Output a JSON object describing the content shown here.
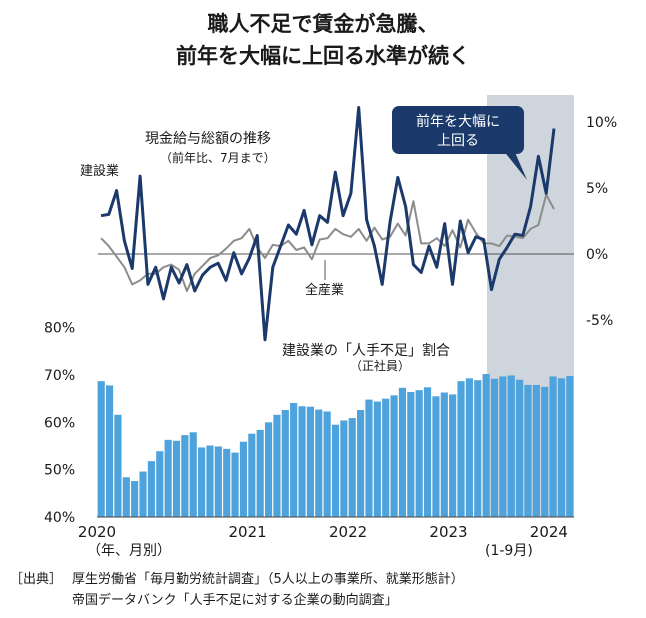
{
  "title_lines": [
    "職人不足で賃金が急騰、",
    "前年を大幅に上回る水準が続く"
  ],
  "chart_data": [
    {
      "type": "line",
      "title": "現金給与総額の推移",
      "subtitle": "（前年比、7月まで）",
      "y_unit": "%",
      "ylim": [
        -5,
        10
      ],
      "yticks": [
        "10%",
        "5%",
        "0%",
        "-5%"
      ],
      "series": [
        {
          "name": "建設業",
          "color": "#1b3a6b",
          "values": [
            2.9,
            3.0,
            4.8,
            1.0,
            -1.1,
            5.9,
            -2.3,
            -1.0,
            -3.4,
            -1.0,
            -2.2,
            -0.8,
            -2.8,
            -1.6,
            -1.0,
            -0.7,
            -2.0,
            0.1,
            -1.5,
            -0.3,
            1.4,
            -6.5,
            -1.0,
            0.6,
            2.2,
            1.5,
            3.3,
            0.7,
            2.9,
            2.4,
            6.2,
            2.9,
            4.6,
            11.1,
            2.6,
            0.6,
            -2.3,
            2.4,
            5.8,
            3.6,
            -0.8,
            -1.4,
            0.6,
            -1.0,
            2.3,
            -2.3,
            2.5,
            0.1,
            1.3,
            1.1,
            -2.7,
            -0.4,
            0.5,
            1.5,
            1.4,
            3.6,
            7.4,
            4.6,
            9.5
          ]
        },
        {
          "name": "全産業",
          "color": "#8c8c8c",
          "values": [
            1.2,
            0.6,
            -0.2,
            -1.0,
            -2.3,
            -2.0,
            -1.5,
            -1.5,
            -1.0,
            -0.8,
            -1.2,
            -2.8,
            -1.5,
            -0.9,
            -0.3,
            -0.1,
            0.4,
            1.0,
            1.2,
            1.9,
            0.5,
            -0.3,
            0.7,
            0.6,
            1.0,
            0.3,
            0.5,
            -0.4,
            1.1,
            1.2,
            1.9,
            1.5,
            1.3,
            1.9,
            1.0,
            2.0,
            1.1,
            1.3,
            2.3,
            1.4,
            4.0,
            0.8,
            0.8,
            1.2,
            0.6,
            1.8,
            0.5,
            2.6,
            1.6,
            0.8,
            0.8,
            0.6,
            1.4,
            1.3,
            1.2,
            1.9,
            2.2,
            4.5,
            3.4
          ]
        }
      ]
    },
    {
      "type": "bar",
      "title": "建設業の「人手不足」割合",
      "subtitle": "（正社員）",
      "y_unit": "%",
      "ylim": [
        40,
        80
      ],
      "yticks": [
        "80%",
        "70%",
        "60%",
        "50%",
        "40%"
      ],
      "series": [
        {
          "name": "建設業の「人手不足」割合",
          "color": "#4ea3dc",
          "values": [
            68.7,
            67.8,
            61.6,
            48.4,
            47.6,
            49.6,
            51.8,
            53.9,
            56.3,
            56.1,
            57.3,
            57.9,
            54.7,
            55.1,
            54.9,
            54.4,
            53.6,
            55.9,
            57.6,
            58.4,
            60.0,
            61.6,
            62.6,
            64.1,
            63.4,
            63.3,
            62.7,
            62.3,
            59.5,
            60.4,
            60.9,
            62.6,
            64.8,
            64.4,
            65.0,
            65.7,
            67.3,
            66.4,
            66.8,
            67.4,
            65.5,
            66.3,
            65.9,
            68.7,
            69.3,
            68.9,
            70.2,
            69.2,
            69.7,
            69.9,
            69.0,
            67.9,
            67.9,
            67.5,
            69.7,
            69.3,
            69.8
          ]
        }
      ]
    }
  ],
  "x_axis": {
    "year_labels": [
      "2020",
      "2021",
      "2022",
      "2023",
      "2024"
    ],
    "first_note": "（年、月別）",
    "last_note": "(1-9月)"
  },
  "callout": {
    "line1": "前年を大幅に",
    "line2": "上回る"
  },
  "source": {
    "label": "［出典］",
    "line1": "厚生労働省「毎月勤労統計調査」（5人以上の事業所、就業形態計）",
    "line2": "帝国データバンク「人手不足に対する企業の動向調査」"
  },
  "colors": {
    "shade": "#cfd5dc",
    "navy": "#1b3a6b",
    "gray": "#8c8c8c",
    "bar": "#4ea3dc"
  }
}
